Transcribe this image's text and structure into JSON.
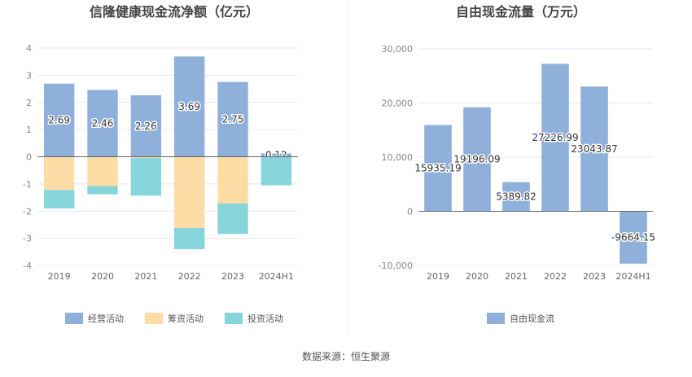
{
  "chart_data": [
    {
      "type": "bar",
      "stacked": true,
      "title": "信隆健康现金流净额（亿元）",
      "categories": [
        "2019",
        "2020",
        "2021",
        "2022",
        "2023",
        "2024H1"
      ],
      "ylim": [
        -4,
        4
      ],
      "yticks": [
        "4",
        "3",
        "2",
        "1",
        "0",
        "-1",
        "-2",
        "-3",
        "-4"
      ],
      "grid": true,
      "legend_position": "bottom",
      "series": [
        {
          "name": "经营活动",
          "color": "#8eb0db",
          "values": [
            2.69,
            2.46,
            2.26,
            3.69,
            2.75,
            0.12
          ],
          "labels": [
            "2.69",
            "2.46",
            "2.26",
            "3.69",
            "2.75",
            "0.12"
          ]
        },
        {
          "name": "筹资活动",
          "color": "#fddca6",
          "values": [
            -1.22,
            -1.08,
            -0.05,
            -2.62,
            -1.72,
            0
          ],
          "labels": []
        },
        {
          "name": "投资活动",
          "color": "#85d5da",
          "values": [
            -0.68,
            -0.3,
            -1.38,
            -0.78,
            -1.12,
            -1.05
          ],
          "labels": []
        }
      ]
    },
    {
      "type": "bar",
      "title": "自由现金流量（万元）",
      "categories": [
        "2019",
        "2020",
        "2021",
        "2022",
        "2023",
        "2024H1"
      ],
      "ylim": [
        -10000,
        30000
      ],
      "yticks": [
        "30,000",
        "20,000",
        "10,000",
        "0",
        "-10,000"
      ],
      "grid": true,
      "legend_position": "bottom",
      "series": [
        {
          "name": "自由现金流",
          "color": "#8eb0db",
          "values": [
            15935.19,
            19196.09,
            5389.82,
            27226.99,
            23043.87,
            -9664.15
          ],
          "labels": [
            "15935.19",
            "19196.09",
            "5389.82",
            "27226.99",
            "23043.87",
            "-9664.15"
          ]
        }
      ]
    }
  ],
  "footer": {
    "source": "数据来源：恒生聚源"
  }
}
